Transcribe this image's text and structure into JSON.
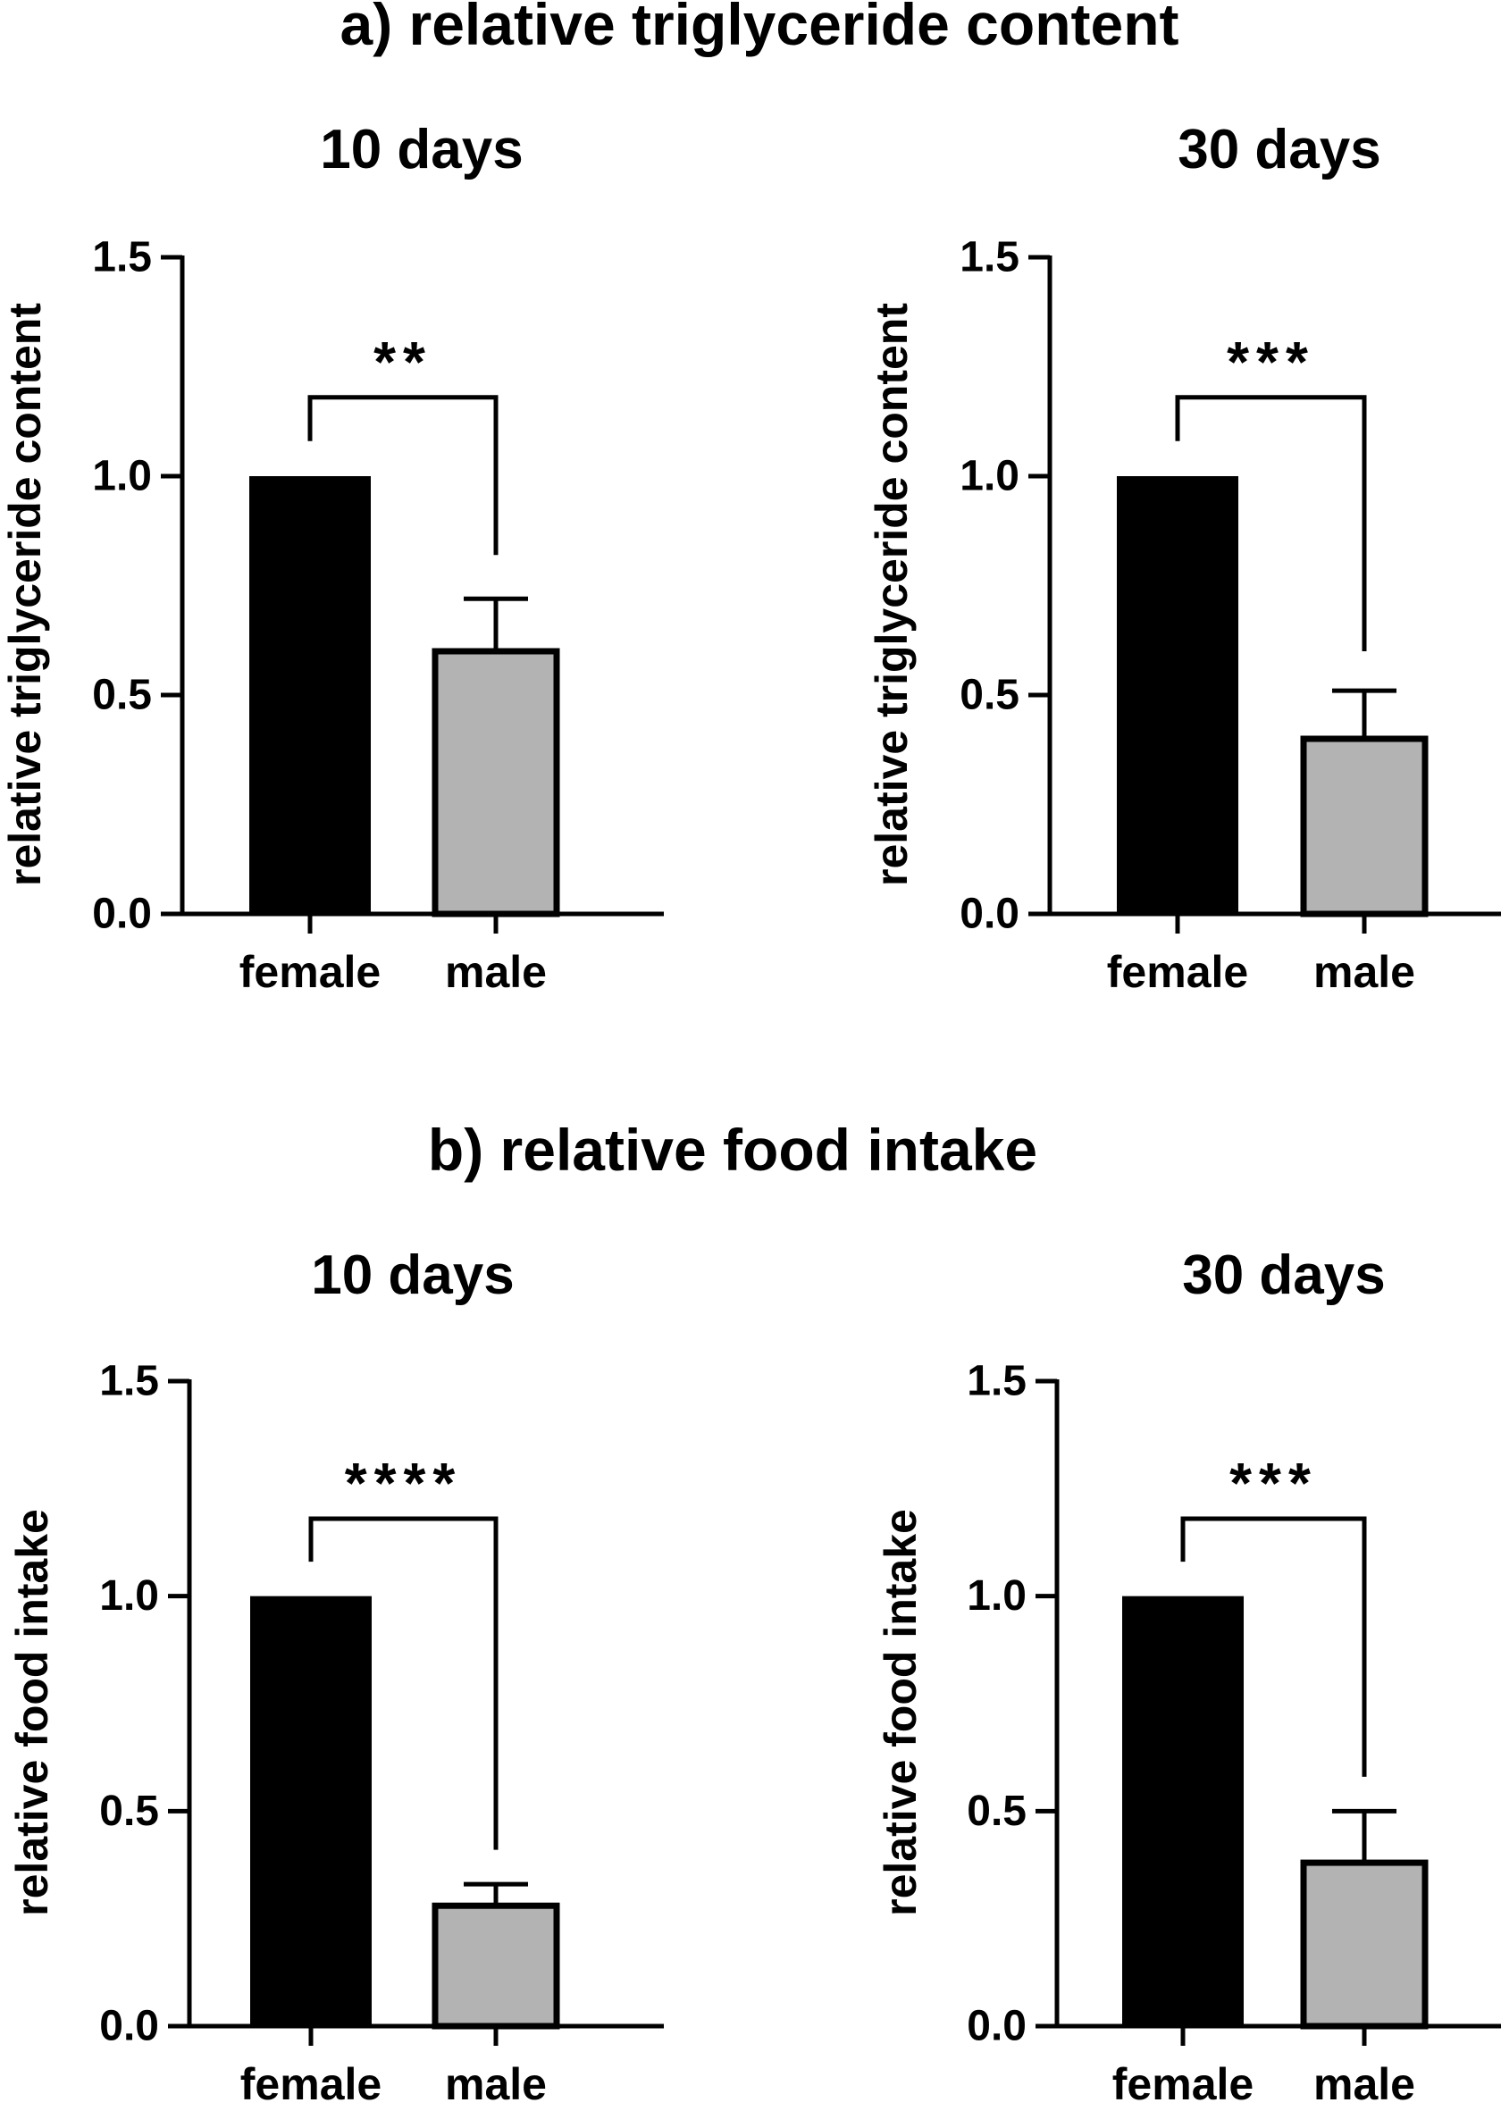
{
  "sections": [
    {
      "heading": "a) relative triglyceride content"
    },
    {
      "heading": "b) relative food intake"
    }
  ],
  "chart_data": [
    {
      "type": "bar",
      "section": 0,
      "title": "10 days",
      "xlabel": "",
      "ylabel": "relative triglyceride content",
      "categories": [
        "female",
        "male"
      ],
      "values": [
        1.0,
        0.6
      ],
      "errors": [
        0.0,
        0.12
      ],
      "colors": [
        "#000000",
        "#b3b3b3"
      ],
      "ylim": [
        0,
        1.5
      ],
      "yticks": [
        0.0,
        0.5,
        1.0,
        1.5
      ],
      "ytick_labels": [
        "0.0",
        "0.5",
        "1.0",
        "1.5"
      ],
      "significance": "**",
      "bracket_level": 1.18,
      "bracket_left_end": 1.08,
      "bracket_right_end": 0.82
    },
    {
      "type": "bar",
      "section": 0,
      "title": "30 days",
      "xlabel": "",
      "ylabel": "relative triglyceride content",
      "categories": [
        "female",
        "male"
      ],
      "values": [
        1.0,
        0.4
      ],
      "errors": [
        0.0,
        0.11
      ],
      "colors": [
        "#000000",
        "#b3b3b3"
      ],
      "ylim": [
        0,
        1.5
      ],
      "yticks": [
        0.0,
        0.5,
        1.0,
        1.5
      ],
      "ytick_labels": [
        "0.0",
        "0.5",
        "1.0",
        "1.5"
      ],
      "significance": "***",
      "bracket_level": 1.18,
      "bracket_left_end": 1.08,
      "bracket_right_end": 0.6
    },
    {
      "type": "bar",
      "section": 1,
      "title": "10 days",
      "xlabel": "",
      "ylabel": "relative food intake",
      "categories": [
        "female",
        "male"
      ],
      "values": [
        1.0,
        0.28
      ],
      "errors": [
        0.0,
        0.05
      ],
      "colors": [
        "#000000",
        "#b3b3b3"
      ],
      "ylim": [
        0,
        1.5
      ],
      "yticks": [
        0.0,
        0.5,
        1.0,
        1.5
      ],
      "ytick_labels": [
        "0.0",
        "0.5",
        "1.0",
        "1.5"
      ],
      "significance": "****",
      "bracket_level": 1.18,
      "bracket_left_end": 1.08,
      "bracket_right_end": 0.41
    },
    {
      "type": "bar",
      "section": 1,
      "title": "30 days",
      "xlabel": "",
      "ylabel": "relative food intake",
      "categories": [
        "female",
        "male"
      ],
      "values": [
        1.0,
        0.38
      ],
      "errors": [
        0.0,
        0.12
      ],
      "colors": [
        "#000000",
        "#b3b3b3"
      ],
      "ylim": [
        0,
        1.5
      ],
      "yticks": [
        0.0,
        0.5,
        1.0,
        1.5
      ],
      "ytick_labels": [
        "0.0",
        "0.5",
        "1.0",
        "1.5"
      ],
      "significance": "***",
      "bracket_level": 1.18,
      "bracket_left_end": 1.08,
      "bracket_right_end": 0.58
    }
  ]
}
